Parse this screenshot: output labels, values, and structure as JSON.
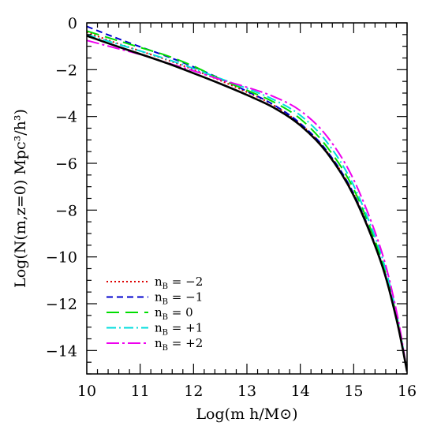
{
  "chart_data": {
    "type": "line",
    "xlabel": "Log(m h/M⊙)",
    "ylabel": "Log(N(m,z=0) Mpc³/h³)",
    "xlim": [
      10,
      16
    ],
    "ylim": [
      -15,
      0
    ],
    "x_ticks": [
      "10",
      "11",
      "12",
      "13",
      "14",
      "15",
      "16"
    ],
    "y_ticks": [
      "0",
      "−2",
      "−4",
      "−6",
      "−8",
      "−10",
      "−12",
      "−14"
    ],
    "legend_position": "bottom-left",
    "grid": false,
    "series": [
      {
        "name": "n_B = −2",
        "legend_label": "n",
        "legend_sub": "B",
        "legend_value": " = −2",
        "color": "#dd0000",
        "dash": "2,3",
        "x": [
          10.0,
          10.5,
          11.0,
          11.5,
          12.0,
          12.5,
          13.0,
          13.5,
          14.0,
          14.5,
          15.0,
          15.5,
          15.8,
          16.0
        ],
        "y": [
          -0.4,
          -0.82,
          -1.2,
          -1.58,
          -2.0,
          -2.46,
          -2.96,
          -3.52,
          -4.32,
          -5.5,
          -7.3,
          -10.1,
          -12.6,
          -14.9
        ]
      },
      {
        "name": "n_B = −1",
        "legend_label": "n",
        "legend_sub": "B",
        "legend_value": " = −1",
        "color": "#0000cc",
        "dash": "8,5",
        "x": [
          10.0,
          10.5,
          11.0,
          11.5,
          12.0,
          12.5,
          13.0,
          13.5,
          14.0,
          14.5,
          15.0,
          15.5,
          15.8,
          16.0
        ],
        "y": [
          -0.15,
          -0.6,
          -1.02,
          -1.43,
          -1.88,
          -2.38,
          -2.92,
          -3.5,
          -4.3,
          -5.48,
          -7.3,
          -10.1,
          -12.6,
          -14.9
        ]
      },
      {
        "name": "n_B = 0",
        "legend_label": "n",
        "legend_sub": "B",
        "legend_value": " = 0",
        "color": "#00dd00",
        "dash": "16,8",
        "x": [
          10.0,
          10.5,
          11.0,
          11.5,
          12.0,
          12.5,
          13.0,
          13.5,
          14.0,
          14.5,
          15.0,
          15.5,
          15.8,
          16.0
        ],
        "y": [
          -0.35,
          -0.7,
          -1.05,
          -1.4,
          -1.85,
          -2.4,
          -2.88,
          -3.38,
          -4.1,
          -5.3,
          -7.1,
          -9.95,
          -12.5,
          -14.9
        ]
      },
      {
        "name": "n_B = +1",
        "legend_label": "n",
        "legend_sub": "B",
        "legend_value": " = +1",
        "color": "#00dddd",
        "dash": "12,4,2,4",
        "x": [
          10.0,
          10.5,
          11.0,
          11.5,
          12.0,
          12.5,
          13.0,
          13.5,
          14.0,
          14.5,
          15.0,
          15.5,
          15.8,
          16.0
        ],
        "y": [
          -0.5,
          -0.85,
          -1.2,
          -1.55,
          -1.95,
          -2.38,
          -2.8,
          -3.28,
          -3.95,
          -5.1,
          -6.95,
          -9.8,
          -12.4,
          -14.9
        ]
      },
      {
        "name": "n_B = +2",
        "legend_label": "n",
        "legend_sub": "B",
        "legend_value": " = +2",
        "color": "#ee00ee",
        "dash": "16,4,3,4",
        "x": [
          10.0,
          10.5,
          11.0,
          11.5,
          12.0,
          12.5,
          13.0,
          13.5,
          14.0,
          14.5,
          15.0,
          15.5,
          15.8,
          16.0
        ],
        "y": [
          -0.75,
          -1.05,
          -1.35,
          -1.7,
          -2.05,
          -2.42,
          -2.75,
          -3.15,
          -3.75,
          -4.85,
          -6.7,
          -9.6,
          -12.3,
          -14.9
        ]
      },
      {
        "color": "#000000",
        "dash": "",
        "width": 2.6,
        "x": [
          10.0,
          10.5,
          11.0,
          11.5,
          12.0,
          12.5,
          13.0,
          13.5,
          14.0,
          14.5,
          15.0,
          15.5,
          15.8,
          16.0
        ],
        "y": [
          -0.55,
          -0.95,
          -1.33,
          -1.72,
          -2.15,
          -2.6,
          -3.08,
          -3.62,
          -4.38,
          -5.55,
          -7.38,
          -10.15,
          -12.65,
          -14.9
        ]
      }
    ]
  }
}
